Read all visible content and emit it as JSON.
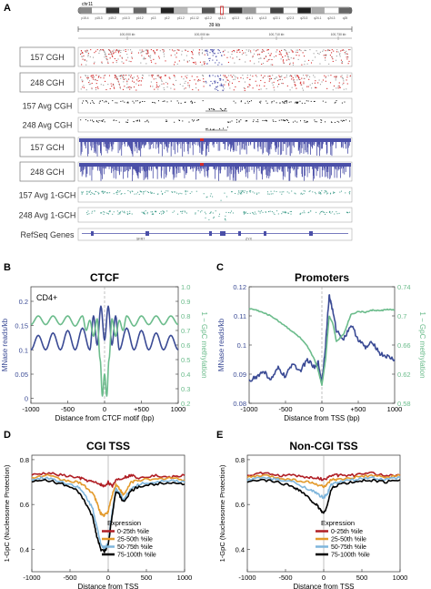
{
  "panel_letters": [
    "A",
    "B",
    "C",
    "D",
    "E"
  ],
  "colors": {
    "cgh_red": "#d42a2a",
    "cgh_gray": "#9c9c9c",
    "gch_purple": "#4a4fa8",
    "avg_black": "#111111",
    "avg_teal": "#3f9c8a",
    "ctcf_blue": "#3b4b95",
    "ctcf_green": "#6cbc8c",
    "q1_red": "#b01e24",
    "q2_orange": "#e39a2c",
    "q3_lightblue": "#7fb6dc",
    "q4_black": "#000000"
  },
  "panel_a": {
    "chrom_label": "chr11",
    "coord_span": "39 kb",
    "coord_ticks": [
      "100,000 kb",
      "100,000 kb",
      "100,710 kb",
      "100,730 kb"
    ],
    "band_labels": [
      "p15.4",
      "p15.3",
      "p15.2",
      "p14.3",
      "p14.2",
      "p13",
      "p12",
      "p11.2",
      "p11.12",
      "q12.2",
      "q13.1",
      "q13.3",
      "q14.1",
      "q14.3",
      "q22.1",
      "q22.3",
      "q23.3",
      "q24.1",
      "q24.3",
      "q25"
    ],
    "tracks": [
      {
        "label": "157 CGH",
        "boxed": true,
        "kind": "cgh"
      },
      {
        "label": "248 CGH",
        "boxed": true,
        "kind": "cgh"
      },
      {
        "label": "157 Avg CGH",
        "boxed": false,
        "kind": "avg_cgh"
      },
      {
        "label": "248 Avg CGH",
        "boxed": false,
        "kind": "avg_cgh"
      },
      {
        "label": "157 GCH",
        "boxed": true,
        "kind": "gch"
      },
      {
        "label": "248 GCH",
        "boxed": true,
        "kind": "gch"
      },
      {
        "label": "157 Avg 1-GCH",
        "boxed": false,
        "kind": "avg_gch"
      },
      {
        "label": "248 Avg 1-GCH",
        "boxed": false,
        "kind": "avg_gch"
      },
      {
        "label": "RefSeq Genes",
        "boxed": false,
        "kind": "genes"
      }
    ],
    "gene_names": [
      "SFR7",
      "ZYX"
    ]
  },
  "chart_data": [
    {
      "panel": "B",
      "type": "line",
      "title": "CTCF",
      "annotation": "CD4+",
      "xlabel": "Distance from CTCF motif (bp)",
      "ylabel_left": "MNase reads/kb",
      "ylabel_right": "1 − GpC methylation",
      "xlim": [
        -1000,
        1000
      ],
      "ylim_left": [
        -0.01,
        0.23
      ],
      "ylim_right": [
        0.2,
        1.0
      ],
      "x_ticks": [
        "-1000",
        "-500",
        "0",
        "+500",
        "1000"
      ],
      "y_ticks_left": [
        "0.2",
        "0.15",
        "0.1",
        "0.05",
        "0"
      ],
      "y_ticks_right": [
        "1.0",
        "0.9",
        "0.8",
        "0.7",
        "0.6",
        "0.5",
        "0.4",
        "0.3",
        "0.2"
      ],
      "series": [
        {
          "axis": "left",
          "color": "#3b4b95",
          "x": [
            -1000,
            -900,
            -800,
            -700,
            -600,
            -500,
            -400,
            -300,
            -200,
            -150,
            -100,
            -50,
            0,
            50,
            100,
            150,
            200,
            300,
            400,
            500,
            600,
            700,
            800,
            900,
            1000
          ],
          "y": [
            0.1,
            0.13,
            0.1,
            0.135,
            0.1,
            0.14,
            0.1,
            0.145,
            0.1,
            0.17,
            0.11,
            0.19,
            0.12,
            0.19,
            0.11,
            0.17,
            0.1,
            0.145,
            0.1,
            0.14,
            0.1,
            0.135,
            0.1,
            0.13,
            0.1
          ]
        },
        {
          "axis": "right",
          "color": "#6cbc8c",
          "x": [
            -1000,
            -900,
            -800,
            -700,
            -600,
            -500,
            -400,
            -300,
            -250,
            -200,
            -150,
            -100,
            -60,
            -30,
            0,
            30,
            60,
            100,
            150,
            200,
            250,
            300,
            400,
            500,
            600,
            700,
            800,
            900,
            1000
          ],
          "y": [
            0.74,
            0.8,
            0.74,
            0.8,
            0.74,
            0.8,
            0.73,
            0.8,
            0.7,
            0.77,
            0.66,
            0.78,
            0.5,
            0.25,
            0.4,
            0.25,
            0.5,
            0.78,
            0.66,
            0.77,
            0.7,
            0.8,
            0.73,
            0.8,
            0.74,
            0.8,
            0.74,
            0.8,
            0.74
          ]
        }
      ]
    },
    {
      "panel": "C",
      "type": "line",
      "title": "Promoters",
      "xlabel": "Distance from TSS (bp)",
      "ylabel_left": "MNase reads/kb",
      "ylabel_right": "1 − GpC methylation",
      "xlim": [
        -1000,
        1000
      ],
      "ylim_left": [
        0.08,
        0.12
      ],
      "ylim_right": [
        0.58,
        0.74
      ],
      "x_ticks": [
        "-1000",
        "-500",
        "0",
        "+500",
        "1000"
      ],
      "y_ticks_left": [
        "0.12",
        "0.11",
        "0.1",
        "0.09",
        "0.08"
      ],
      "y_ticks_right": [
        "0.74",
        "0.7",
        "0.66",
        "0.62",
        "0.58"
      ],
      "series": [
        {
          "axis": "left",
          "color": "#3b4b95",
          "x": [
            -1000,
            -900,
            -800,
            -700,
            -600,
            -500,
            -400,
            -300,
            -200,
            -100,
            -50,
            0,
            50,
            100,
            130,
            200,
            300,
            400,
            500,
            600,
            700,
            800,
            900,
            1000
          ],
          "y": [
            0.088,
            0.089,
            0.091,
            0.088,
            0.092,
            0.089,
            0.094,
            0.091,
            0.095,
            0.092,
            0.094,
            0.087,
            0.1,
            0.117,
            0.114,
            0.105,
            0.102,
            0.107,
            0.102,
            0.099,
            0.101,
            0.097,
            0.096,
            0.095
          ]
        },
        {
          "axis": "right",
          "color": "#6cbc8c",
          "x": [
            -1000,
            -900,
            -800,
            -700,
            -600,
            -500,
            -400,
            -300,
            -200,
            -100,
            -50,
            0,
            50,
            100,
            150,
            200,
            300,
            400,
            500,
            600,
            700,
            800,
            900,
            1000
          ],
          "y": [
            0.71,
            0.708,
            0.704,
            0.7,
            0.693,
            0.686,
            0.678,
            0.67,
            0.658,
            0.64,
            0.625,
            0.605,
            0.64,
            0.7,
            0.69,
            0.665,
            0.675,
            0.702,
            0.706,
            0.705,
            0.708,
            0.707,
            0.709,
            0.708
          ]
        }
      ]
    },
    {
      "panel": "D",
      "type": "line",
      "title": "CGI TSS",
      "xlabel": "Distance from TSS",
      "ylabel": "1-GpC (Nucleosome Protection)",
      "xlim": [
        -1000,
        1000
      ],
      "ylim": [
        0.3,
        0.82
      ],
      "x_ticks": [
        "-1000",
        "-500",
        "0",
        "500",
        "1000"
      ],
      "y_ticks": [
        "0.8",
        "0.6",
        "0.4"
      ],
      "legend_title": "Expression",
      "legend_position": "lower-right",
      "series": [
        {
          "name": "0-25th %ile",
          "color": "#b01e24",
          "x": [
            -1000,
            -800,
            -600,
            -400,
            -300,
            -200,
            -100,
            -50,
            0,
            50,
            100,
            200,
            300,
            400,
            600,
            800,
            1000
          ],
          "y": [
            0.73,
            0.74,
            0.73,
            0.72,
            0.71,
            0.7,
            0.69,
            0.68,
            0.7,
            0.68,
            0.71,
            0.72,
            0.73,
            0.72,
            0.73,
            0.72,
            0.73
          ]
        },
        {
          "name": "25-50th %ile",
          "color": "#e39a2c",
          "x": [
            -1000,
            -800,
            -600,
            -400,
            -300,
            -200,
            -150,
            -100,
            -50,
            0,
            50,
            100,
            150,
            200,
            300,
            400,
            600,
            800,
            1000
          ],
          "y": [
            0.72,
            0.73,
            0.71,
            0.7,
            0.68,
            0.65,
            0.61,
            0.56,
            0.55,
            0.57,
            0.64,
            0.69,
            0.67,
            0.64,
            0.7,
            0.71,
            0.71,
            0.72,
            0.71
          ]
        },
        {
          "name": "50-75th %ile",
          "color": "#7fb6dc",
          "x": [
            -1000,
            -800,
            -600,
            -400,
            -300,
            -200,
            -150,
            -100,
            -50,
            0,
            50,
            100,
            150,
            200,
            300,
            400,
            600,
            800,
            1000
          ],
          "y": [
            0.71,
            0.72,
            0.7,
            0.68,
            0.64,
            0.58,
            0.5,
            0.43,
            0.4,
            0.43,
            0.56,
            0.67,
            0.65,
            0.62,
            0.67,
            0.69,
            0.7,
            0.71,
            0.7
          ]
        },
        {
          "name": "75-100th %ile",
          "color": "#000000",
          "x": [
            -1000,
            -800,
            -600,
            -400,
            -300,
            -200,
            -150,
            -100,
            -50,
            0,
            50,
            100,
            150,
            200,
            300,
            400,
            600,
            800,
            1000
          ],
          "y": [
            0.7,
            0.71,
            0.69,
            0.66,
            0.61,
            0.54,
            0.46,
            0.4,
            0.39,
            0.42,
            0.55,
            0.66,
            0.64,
            0.61,
            0.66,
            0.68,
            0.69,
            0.7,
            0.69
          ]
        }
      ]
    },
    {
      "panel": "E",
      "type": "line",
      "title": "Non-CGI TSS",
      "xlabel": "Distance from TSS",
      "ylabel": "1-GpC (Nucleosome Protection)",
      "xlim": [
        -1000,
        1000
      ],
      "ylim": [
        0.3,
        0.82
      ],
      "x_ticks": [
        "-1000",
        "-500",
        "0",
        "500",
        "1000"
      ],
      "y_ticks": [
        "0.8",
        "0.6",
        "0.4"
      ],
      "legend_title": "Expression",
      "legend_position": "lower-right",
      "series": [
        {
          "name": "0-25th %ile",
          "color": "#b01e24",
          "x": [
            -1000,
            -800,
            -600,
            -400,
            -200,
            -100,
            0,
            100,
            200,
            400,
            600,
            800,
            1000
          ],
          "y": [
            0.73,
            0.74,
            0.73,
            0.73,
            0.72,
            0.72,
            0.71,
            0.73,
            0.73,
            0.73,
            0.74,
            0.73,
            0.73
          ]
        },
        {
          "name": "25-50th %ile",
          "color": "#e39a2c",
          "x": [
            -1000,
            -800,
            -600,
            -400,
            -200,
            -100,
            0,
            50,
            100,
            200,
            400,
            600,
            800,
            1000
          ],
          "y": [
            0.72,
            0.73,
            0.72,
            0.71,
            0.7,
            0.69,
            0.68,
            0.69,
            0.71,
            0.71,
            0.72,
            0.73,
            0.72,
            0.73
          ]
        },
        {
          "name": "50-75th %ile",
          "color": "#7fb6dc",
          "x": [
            -1000,
            -800,
            -600,
            -400,
            -200,
            -100,
            0,
            50,
            100,
            200,
            400,
            600,
            800,
            1000
          ],
          "y": [
            0.71,
            0.72,
            0.71,
            0.7,
            0.67,
            0.65,
            0.63,
            0.65,
            0.69,
            0.7,
            0.71,
            0.72,
            0.71,
            0.72
          ]
        },
        {
          "name": "75-100th %ile",
          "color": "#000000",
          "x": [
            -1000,
            -800,
            -600,
            -400,
            -300,
            -200,
            -100,
            -50,
            0,
            50,
            100,
            200,
            400,
            600,
            800,
            1000
          ],
          "y": [
            0.7,
            0.71,
            0.7,
            0.68,
            0.66,
            0.63,
            0.6,
            0.58,
            0.56,
            0.6,
            0.67,
            0.69,
            0.7,
            0.71,
            0.7,
            0.71
          ]
        }
      ]
    }
  ]
}
